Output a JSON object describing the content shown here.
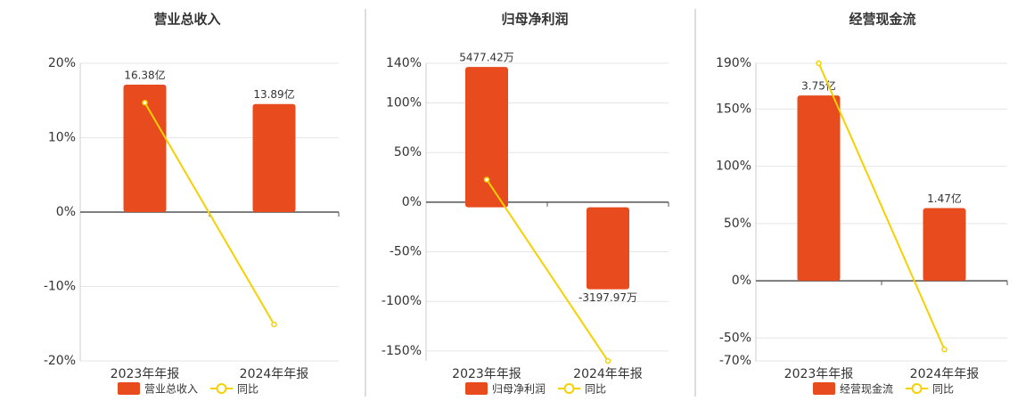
{
  "chart_data": [
    {
      "type": "bar",
      "title": "营业总收入",
      "categories": [
        "2023年年报",
        "2024年年报"
      ],
      "ylim": [
        -20,
        20
      ],
      "yticks": [
        {
          "value": -20,
          "label": "-20%"
        },
        {
          "value": -10,
          "label": "-10%"
        },
        {
          "value": 0,
          "label": "0%"
        },
        {
          "value": 10,
          "label": "10%"
        },
        {
          "value": 20,
          "label": "20%"
        }
      ],
      "y2lim": [
        -19.13,
        19.13
      ],
      "grid": true,
      "series": [
        {
          "name": "营业总收入",
          "type": "bar",
          "axis": "y2",
          "color": "#e84c1e",
          "values": [
            16.38,
            13.89
          ],
          "value_labels": [
            "16.38亿",
            "13.89亿"
          ]
        },
        {
          "name": "同比",
          "type": "line",
          "color": "#f5d100",
          "values": [
            14.7,
            -15.1
          ]
        }
      ]
    },
    {
      "type": "bar",
      "title": "归母净利润",
      "categories": [
        "2023年年报",
        "2024年年报"
      ],
      "ylim": [
        -160,
        140
      ],
      "yticks": [
        {
          "value": -150,
          "label": "-150%"
        },
        {
          "value": -100,
          "label": "-100%"
        },
        {
          "value": -50,
          "label": "-50%"
        },
        {
          "value": 0,
          "label": "0%"
        },
        {
          "value": 50,
          "label": "50%"
        },
        {
          "value": 100,
          "label": "100%"
        },
        {
          "value": 140,
          "label": "140%"
        }
      ],
      "y2lim": [
        -5990,
        5620
      ],
      "grid": true,
      "series": [
        {
          "name": "归母净利润",
          "type": "bar",
          "axis": "y2",
          "color": "#e84c1e",
          "values": [
            5477.42,
            -3197.97
          ],
          "value_labels": [
            "5477.42万",
            "-3197.97万"
          ]
        },
        {
          "name": "同比",
          "type": "line",
          "color": "#f5d100",
          "values": [
            22.7,
            -160
          ]
        }
      ]
    },
    {
      "type": "bar",
      "title": "经营现金流",
      "categories": [
        "2023年年报",
        "2024年年报"
      ],
      "ylim": [
        -70,
        190
      ],
      "yticks": [
        {
          "value": -70,
          "label": "-70%"
        },
        {
          "value": -50,
          "label": "-50%"
        },
        {
          "value": 0,
          "label": "0%"
        },
        {
          "value": 50,
          "label": "50%"
        },
        {
          "value": 100,
          "label": "100%"
        },
        {
          "value": 150,
          "label": "150%"
        },
        {
          "value": 190,
          "label": "190%"
        }
      ],
      "y2lim": [
        -1.62,
        4.4
      ],
      "grid": true,
      "series": [
        {
          "name": "经营现金流",
          "type": "bar",
          "axis": "y2",
          "color": "#e84c1e",
          "values": [
            3.75,
            1.47
          ],
          "value_labels": [
            "3.75亿",
            "1.47亿"
          ]
        },
        {
          "name": "同比",
          "type": "line",
          "color": "#f5d100",
          "values": [
            190,
            -60
          ]
        }
      ]
    }
  ]
}
